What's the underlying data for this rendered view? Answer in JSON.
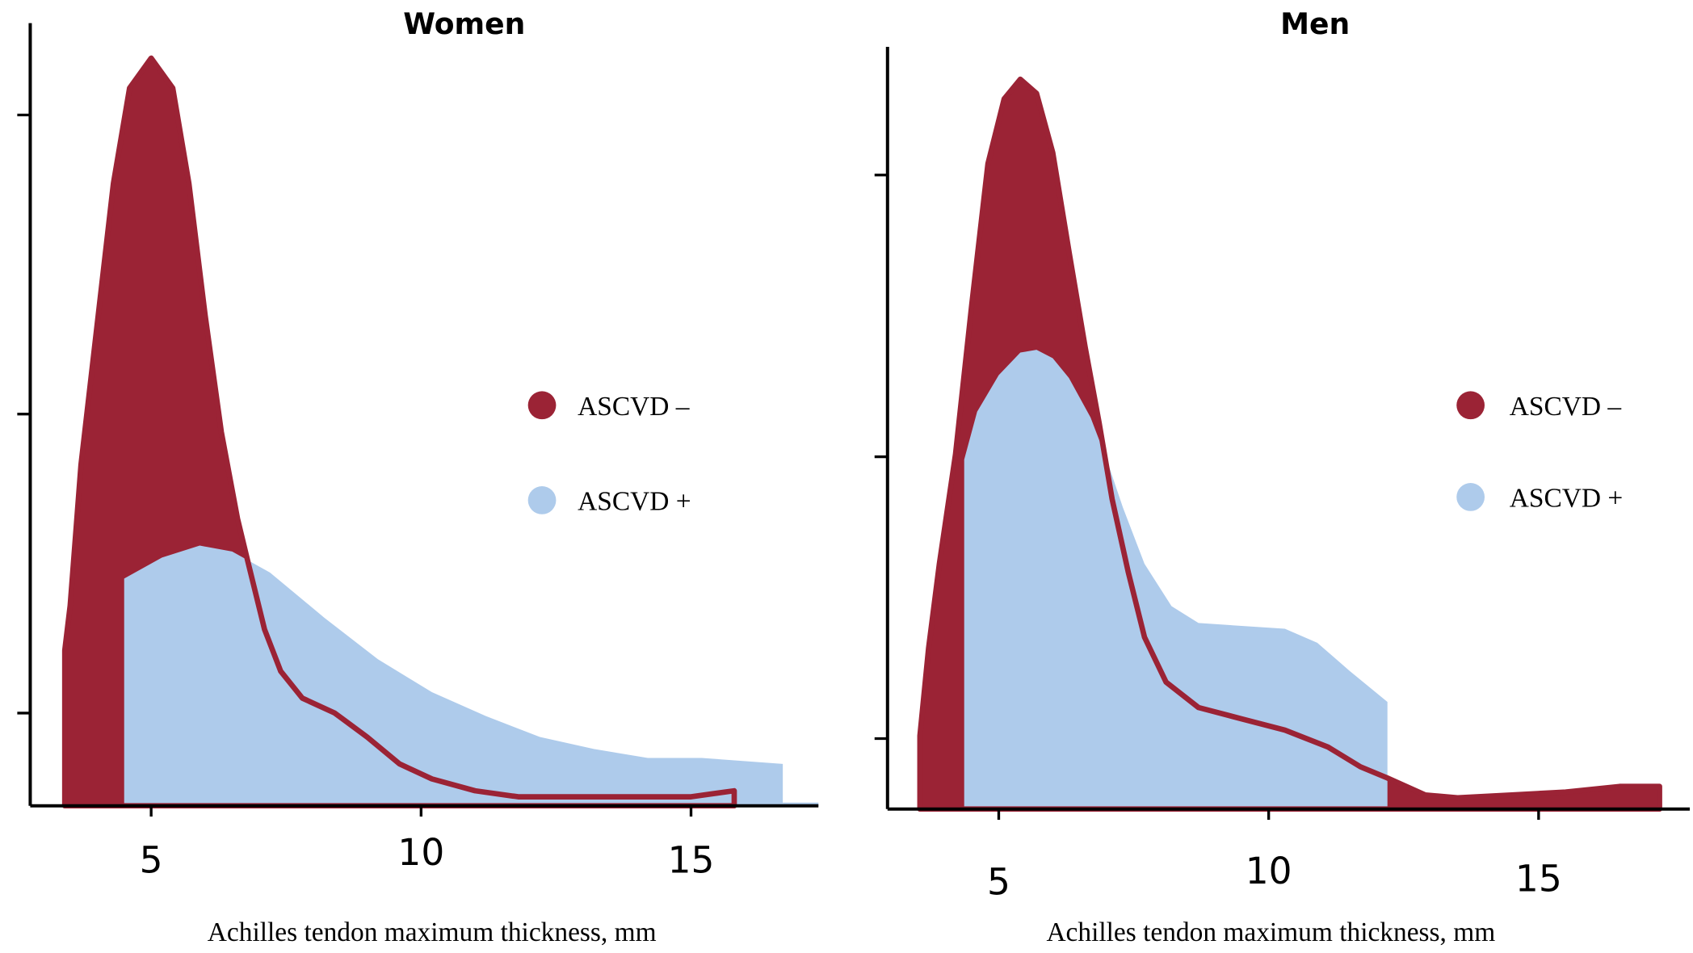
{
  "colors": {
    "ascvd_neg": "#9b2335",
    "ascvd_pos": "#aecbeb",
    "axis": "#000000"
  },
  "chart_data": [
    {
      "type": "area",
      "title": "Women",
      "xlabel": "Achilles tendon maximum thickness, mm",
      "ylabel": "",
      "xticks": [
        5,
        10,
        15
      ],
      "xlim": [
        2.76,
        17.36
      ],
      "ylim": [
        0,
        0.262
      ],
      "yticks": [
        0.031,
        0.131,
        0.231
      ],
      "yticks_labeled": false,
      "legend": {
        "placement": "right",
        "entries": [
          "ASCVD –",
          "ASCVD +"
        ]
      },
      "series": [
        {
          "name": "ASCVD –",
          "color": "#9b2335",
          "points": [
            [
              3.4,
              0
            ],
            [
              3.4,
              0.052
            ],
            [
              3.5,
              0.067
            ],
            [
              3.7,
              0.114
            ],
            [
              4.0,
              0.161
            ],
            [
              4.3,
              0.208
            ],
            [
              4.6,
              0.24
            ],
            [
              5.0,
              0.25
            ],
            [
              5.4,
              0.24
            ],
            [
              5.7,
              0.208
            ],
            [
              6.0,
              0.164
            ],
            [
              6.3,
              0.125
            ],
            [
              6.6,
              0.096
            ],
            [
              6.8,
              0.081
            ],
            [
              7.1,
              0.059
            ],
            [
              7.4,
              0.045
            ],
            [
              7.8,
              0.036
            ],
            [
              8.4,
              0.031
            ],
            [
              9.0,
              0.023
            ],
            [
              9.6,
              0.014
            ],
            [
              10.2,
              0.009
            ],
            [
              11.0,
              0.005
            ],
            [
              11.8,
              0.003
            ],
            [
              13.4,
              0.003
            ],
            [
              15.0,
              0.003
            ],
            [
              15.4,
              0.004
            ],
            [
              15.8,
              0.005
            ],
            [
              15.8,
              0
            ]
          ]
        },
        {
          "name": "ASCVD +",
          "color": "#aecbeb",
          "points": [
            [
              4.5,
              0
            ],
            [
              4.5,
              0.076
            ],
            [
              5.2,
              0.083
            ],
            [
              5.9,
              0.087
            ],
            [
              6.5,
              0.085
            ],
            [
              7.2,
              0.078
            ],
            [
              8.2,
              0.063
            ],
            [
              9.2,
              0.049
            ],
            [
              10.2,
              0.038
            ],
            [
              11.2,
              0.03
            ],
            [
              12.2,
              0.023
            ],
            [
              13.2,
              0.019
            ],
            [
              14.2,
              0.016
            ],
            [
              15.2,
              0.016
            ],
            [
              16.7,
              0.014
            ],
            [
              16.7,
              0
            ]
          ]
        }
      ]
    },
    {
      "type": "area",
      "title": "Men",
      "xlabel": "Achilles tendon maximum thickness, mm",
      "ylabel": "",
      "xticks": [
        5,
        10,
        15
      ],
      "xlim": [
        2.94,
        17.8
      ],
      "ylim": [
        0,
        0.27
      ],
      "yticks": [
        0.025,
        0.125,
        0.225
      ],
      "yticks_labeled": false,
      "legend": {
        "placement": "right",
        "entries": [
          "ASCVD –",
          "ASCVD +"
        ]
      },
      "series": [
        {
          "name": "ASCVD –",
          "color": "#9b2335",
          "points": [
            [
              3.54,
              0
            ],
            [
              3.54,
              0.026
            ],
            [
              3.7,
              0.057
            ],
            [
              3.9,
              0.087
            ],
            [
              4.2,
              0.126
            ],
            [
              4.5,
              0.179
            ],
            [
              4.8,
              0.229
            ],
            [
              5.1,
              0.252
            ],
            [
              5.4,
              0.259
            ],
            [
              5.7,
              0.254
            ],
            [
              6.0,
              0.233
            ],
            [
              6.3,
              0.198
            ],
            [
              6.6,
              0.164
            ],
            [
              6.86,
              0.137
            ],
            [
              7.1,
              0.11
            ],
            [
              7.4,
              0.084
            ],
            [
              7.7,
              0.061
            ],
            [
              8.1,
              0.045
            ],
            [
              8.7,
              0.036
            ],
            [
              9.5,
              0.032
            ],
            [
              10.3,
              0.028
            ],
            [
              11.1,
              0.022
            ],
            [
              11.7,
              0.015
            ],
            [
              12.2,
              0.011
            ],
            [
              12.9,
              0.005
            ],
            [
              13.5,
              0.004
            ],
            [
              14.5,
              0.005
            ],
            [
              15.5,
              0.006
            ],
            [
              16.5,
              0.008
            ],
            [
              17.24,
              0.008
            ],
            [
              17.24,
              0
            ]
          ]
        },
        {
          "name": "ASCVD +",
          "color": "#aecbeb",
          "points": [
            [
              4.36,
              0
            ],
            [
              4.36,
              0.124
            ],
            [
              4.6,
              0.141
            ],
            [
              5.0,
              0.154
            ],
            [
              5.4,
              0.162
            ],
            [
              5.7,
              0.163
            ],
            [
              6.0,
              0.16
            ],
            [
              6.3,
              0.153
            ],
            [
              6.7,
              0.139
            ],
            [
              7.0,
              0.124
            ],
            [
              7.3,
              0.107
            ],
            [
              7.7,
              0.087
            ],
            [
              8.2,
              0.072
            ],
            [
              8.7,
              0.066
            ],
            [
              9.5,
              0.065
            ],
            [
              10.3,
              0.064
            ],
            [
              10.9,
              0.059
            ],
            [
              11.5,
              0.049
            ],
            [
              12.2,
              0.038
            ],
            [
              12.2,
              0
            ]
          ]
        }
      ]
    }
  ]
}
